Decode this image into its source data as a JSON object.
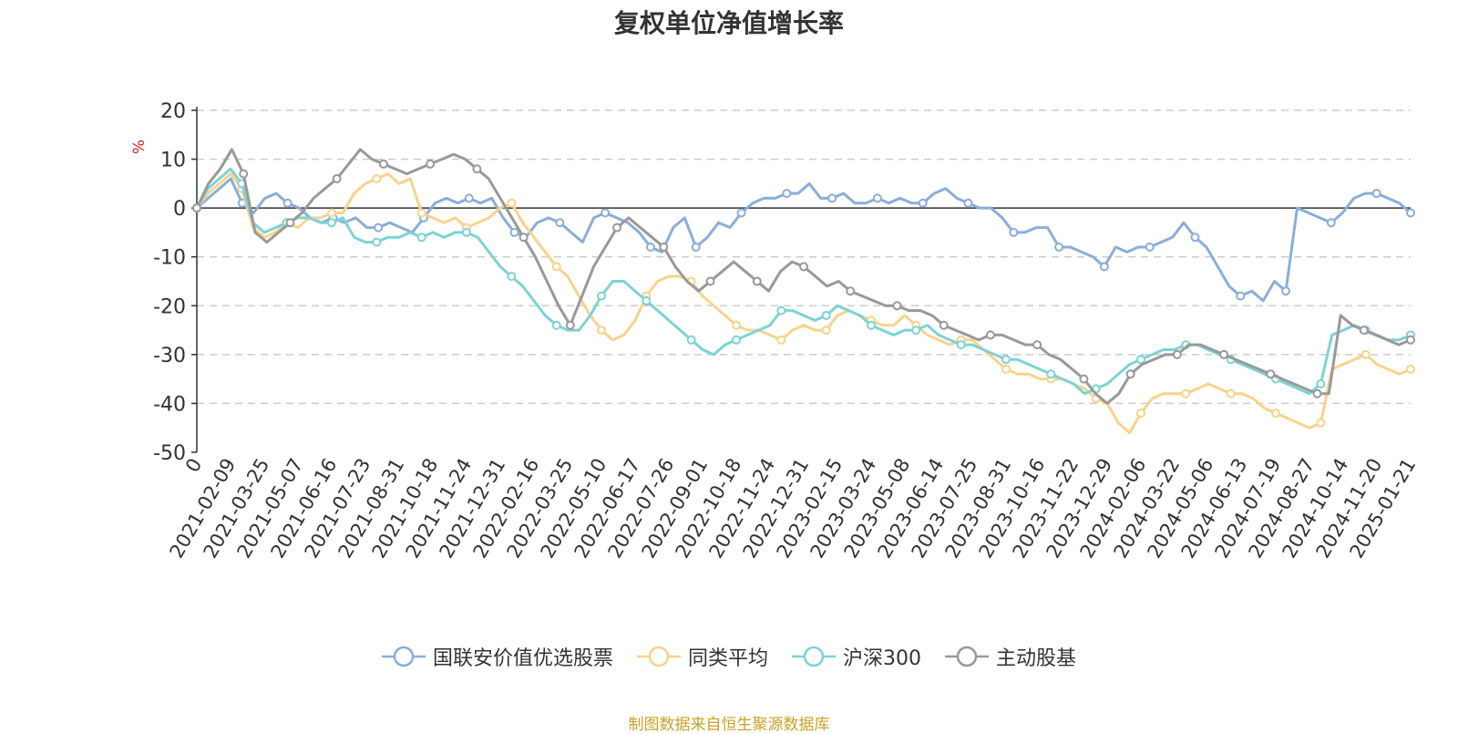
{
  "chart_data": {
    "type": "line",
    "title": "复权单位净值增长率",
    "ylabel": "%",
    "xlabel": "",
    "ylim": [
      -50,
      20
    ],
    "yticks": [
      20,
      10,
      0,
      -10,
      -20,
      -30,
      -40,
      -50
    ],
    "grid": true,
    "legend_position": "bottom-center",
    "x_tick_labels": [
      "0",
      "2021-02-09",
      "2021-03-25",
      "2021-05-07",
      "2021-06-16",
      "2021-07-23",
      "2021-08-31",
      "2021-10-18",
      "2021-11-24",
      "2021-12-31",
      "2022-02-16",
      "2022-03-25",
      "2022-05-10",
      "2022-06-17",
      "2022-07-26",
      "2022-09-01",
      "2022-10-18",
      "2022-11-24",
      "2022-12-31",
      "2023-02-15",
      "2023-03-24",
      "2023-05-08",
      "2023-06-14",
      "2023-07-25",
      "2023-08-31",
      "2023-10-16",
      "2023-11-22",
      "2023-12-29",
      "2024-02-06",
      "2024-03-22",
      "2024-05-06",
      "2024-06-13",
      "2024-07-19",
      "2024-08-27",
      "2024-10-14",
      "2024-11-20",
      "2025-01-21"
    ],
    "series": [
      {
        "name": "国联安价值优选股票",
        "color": "#8aaedb",
        "values": [
          0,
          2,
          4,
          6,
          1,
          -1,
          2,
          3,
          1,
          0,
          -2,
          -3,
          -2,
          -3,
          -2,
          -4,
          -4,
          -3,
          -4,
          -5,
          -2,
          1,
          2,
          1,
          2,
          1,
          2,
          -2,
          -5,
          -6,
          -3,
          -2,
          -3,
          -5,
          -7,
          -2,
          -1,
          -2,
          -3,
          -5,
          -8,
          -9,
          -4,
          -2,
          -8,
          -6,
          -3,
          -4,
          -1,
          1,
          2,
          2,
          3,
          3,
          5,
          2,
          2,
          3,
          1,
          1,
          2,
          1,
          2,
          1,
          1,
          3,
          4,
          2,
          1,
          0,
          0,
          -2,
          -5,
          -5,
          -4,
          -4,
          -8,
          -8,
          -9,
          -10,
          -12,
          -8,
          -9,
          -8,
          -8,
          -7,
          -6,
          -3,
          -6,
          -8,
          -12,
          -16,
          -18,
          -17,
          -19,
          -15,
          -17,
          0,
          -1,
          -2,
          -3,
          -1,
          2,
          3,
          3,
          2,
          1,
          -1
        ]
      },
      {
        "name": "同类平均",
        "color": "#f9d38c",
        "values": [
          0,
          3,
          5,
          7,
          4,
          -4,
          -6,
          -5,
          -3,
          -4,
          -2,
          -2,
          -1,
          -1,
          3,
          5,
          6,
          7,
          5,
          6,
          -1,
          -2,
          -3,
          -2,
          -4,
          -3,
          -2,
          0,
          1,
          -3,
          -6,
          -9,
          -12,
          -14,
          -18,
          -22,
          -25,
          -27,
          -26,
          -23,
          -18,
          -15,
          -14,
          -14,
          -15,
          -18,
          -20,
          -22,
          -24,
          -25,
          -25,
          -26,
          -27,
          -25,
          -24,
          -25,
          -25,
          -22,
          -21,
          -22,
          -23,
          -24,
          -24,
          -22,
          -24,
          -26,
          -27,
          -28,
          -27,
          -27,
          -29,
          -31,
          -33,
          -34,
          -34,
          -35,
          -35,
          -35,
          -36,
          -37,
          -39,
          -40,
          -44,
          -46,
          -42,
          -39,
          -38,
          -38,
          -38,
          -37,
          -36,
          -37,
          -38,
          -38,
          -39,
          -41,
          -42,
          -43,
          -44,
          -45,
          -44,
          -33,
          -32,
          -31,
          -30,
          -32,
          -33,
          -34,
          -33
        ]
      },
      {
        "name": "沪深300",
        "color": "#7dd3d6",
        "values": [
          0,
          4,
          6,
          8,
          5,
          -3,
          -5,
          -4,
          -3,
          -2,
          -2,
          -3,
          -3,
          -2,
          -6,
          -7,
          -7,
          -6,
          -6,
          -5,
          -6,
          -5,
          -6,
          -5,
          -5,
          -6,
          -9,
          -12,
          -14,
          -16,
          -19,
          -22,
          -24,
          -25,
          -25,
          -22,
          -18,
          -15,
          -15,
          -17,
          -19,
          -21,
          -23,
          -25,
          -27,
          -29,
          -30,
          -28,
          -27,
          -26,
          -25,
          -24,
          -21,
          -21,
          -22,
          -23,
          -22,
          -20,
          -21,
          -22,
          -24,
          -25,
          -26,
          -25,
          -25,
          -24,
          -26,
          -27,
          -28,
          -28,
          -29,
          -30,
          -31,
          -31,
          -32,
          -33,
          -34,
          -35,
          -36,
          -38,
          -37,
          -36,
          -34,
          -32,
          -31,
          -30,
          -29,
          -29,
          -28,
          -28,
          -29,
          -30,
          -31,
          -32,
          -33,
          -34,
          -35,
          -36,
          -37,
          -38,
          -36,
          -26,
          -25,
          -24,
          -25,
          -26,
          -27,
          -27,
          -26
        ]
      },
      {
        "name": "主动股基",
        "color": "#999999",
        "values": [
          0,
          5,
          8,
          12,
          7,
          -5,
          -7,
          -5,
          -3,
          -1,
          2,
          4,
          6,
          9,
          12,
          10,
          9,
          8,
          7,
          8,
          9,
          10,
          11,
          10,
          8,
          6,
          2,
          -2,
          -6,
          -10,
          -15,
          -20,
          -24,
          -18,
          -12,
          -8,
          -4,
          -2,
          -4,
          -6,
          -8,
          -12,
          -15,
          -17,
          -15,
          -13,
          -11,
          -13,
          -15,
          -17,
          -13,
          -11,
          -12,
          -14,
          -16,
          -15,
          -17,
          -18,
          -19,
          -20,
          -20,
          -21,
          -21,
          -22,
          -24,
          -25,
          -26,
          -27,
          -26,
          -26,
          -27,
          -28,
          -28,
          -30,
          -31,
          -33,
          -35,
          -38,
          -40,
          -38,
          -34,
          -32,
          -31,
          -30,
          -30,
          -28,
          -28,
          -29,
          -30,
          -31,
          -32,
          -33,
          -34,
          -35,
          -36,
          -37,
          -38,
          -38,
          -22,
          -24,
          -25,
          -26,
          -27,
          -28,
          -27
        ]
      }
    ]
  },
  "source_note": "制图数据来自恒生聚源数据库"
}
